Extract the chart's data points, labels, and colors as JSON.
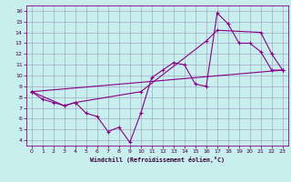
{
  "xlabel": "Windchill (Refroidissement éolien,°C)",
  "bg_color": "#c8eeee",
  "line_color": "#880088",
  "grid_color": "#9999bb",
  "xlim": [
    -0.5,
    23.5
  ],
  "ylim": [
    3.5,
    16.5
  ],
  "xticks": [
    0,
    1,
    2,
    3,
    4,
    5,
    6,
    7,
    8,
    9,
    10,
    11,
    12,
    13,
    14,
    15,
    16,
    17,
    18,
    19,
    20,
    21,
    22,
    23
  ],
  "yticks": [
    4,
    5,
    6,
    7,
    8,
    9,
    10,
    11,
    12,
    13,
    14,
    15,
    16
  ],
  "line1_x": [
    0,
    1,
    2,
    3,
    4,
    5,
    6,
    7,
    8,
    9,
    10,
    11,
    12,
    13,
    14,
    15,
    16,
    17,
    18,
    19,
    20,
    21,
    22,
    23
  ],
  "line1_y": [
    8.5,
    7.8,
    7.5,
    7.2,
    7.5,
    6.5,
    6.2,
    4.8,
    5.2,
    3.8,
    6.5,
    9.8,
    10.5,
    11.2,
    11.0,
    9.2,
    9.0,
    15.8,
    14.8,
    13.0,
    13.0,
    12.2,
    10.5,
    10.5
  ],
  "line2_x": [
    0,
    3,
    4,
    10,
    16,
    17,
    21,
    22,
    23
  ],
  "line2_y": [
    8.5,
    7.2,
    7.5,
    8.5,
    13.2,
    14.2,
    14.0,
    12.0,
    10.5
  ],
  "line3_x": [
    0,
    23
  ],
  "line3_y": [
    8.5,
    10.5
  ]
}
